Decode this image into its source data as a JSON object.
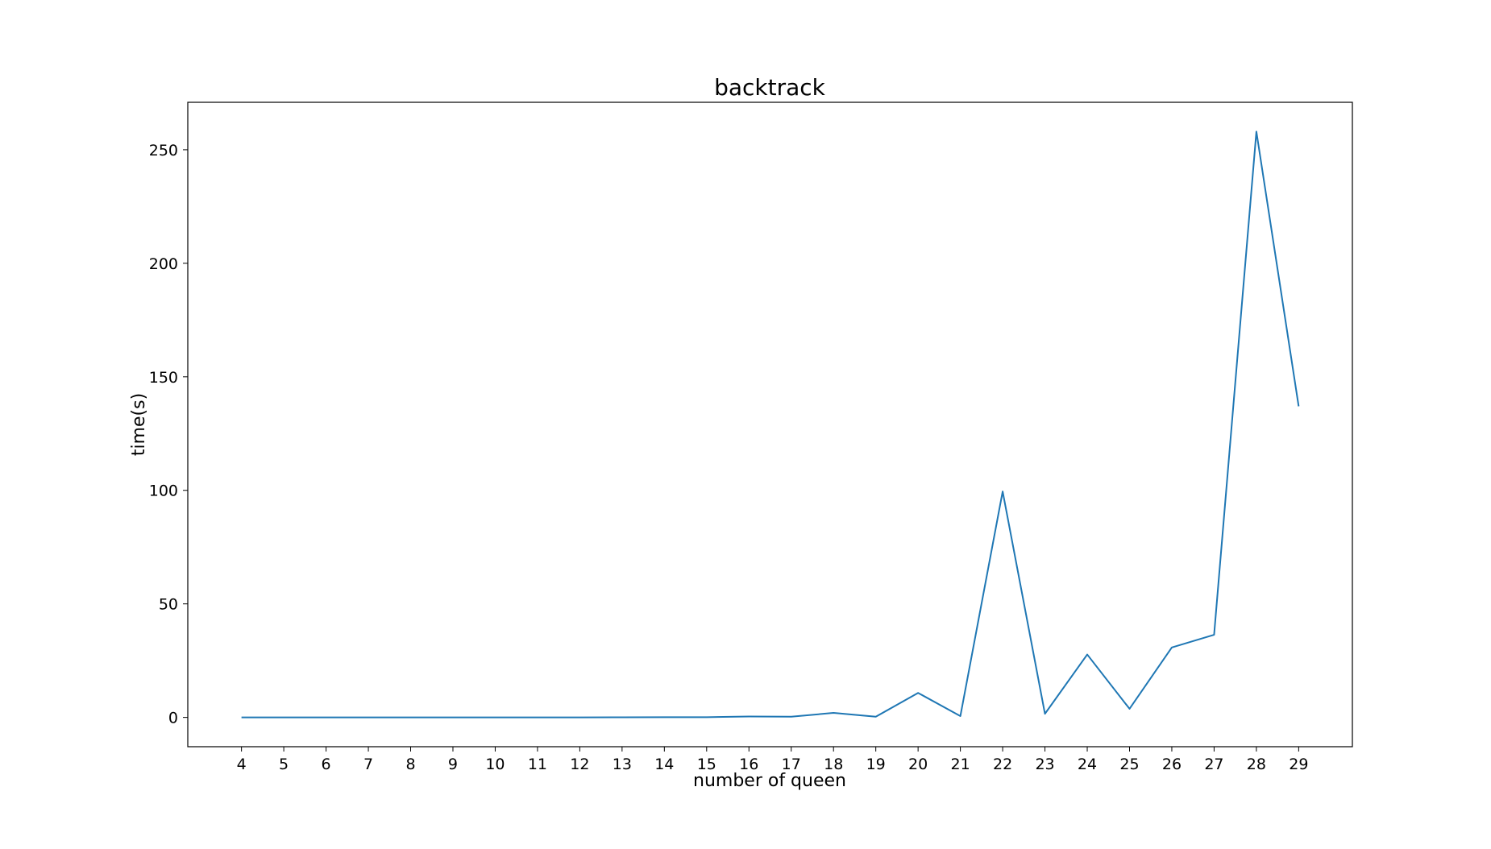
{
  "chart_data": {
    "type": "line",
    "title": "backtrack",
    "xlabel": "number of queen",
    "ylabel": "time(s)",
    "x": [
      4,
      5,
      6,
      7,
      8,
      9,
      10,
      11,
      12,
      13,
      14,
      15,
      16,
      17,
      18,
      19,
      20,
      21,
      22,
      23,
      24,
      25,
      26,
      27,
      28,
      29
    ],
    "series": [
      {
        "color": "#1f77b4",
        "values": [
          0.01,
          0.01,
          0.01,
          0.01,
          0.01,
          0.01,
          0.01,
          0.01,
          0.02,
          0.03,
          0.1,
          0.1,
          0.4,
          0.3,
          2.0,
          0.3,
          10.8,
          0.6,
          99.5,
          1.6,
          27.7,
          3.8,
          30.8,
          36.4,
          258.0,
          137.0
        ]
      }
    ],
    "xlim": [
      2.73,
      30.27
    ],
    "ylim": [
      -12.9,
      270.9
    ],
    "yticks": [
      0,
      50,
      100,
      150,
      200,
      250
    ],
    "grid": false,
    "legend": "none"
  }
}
